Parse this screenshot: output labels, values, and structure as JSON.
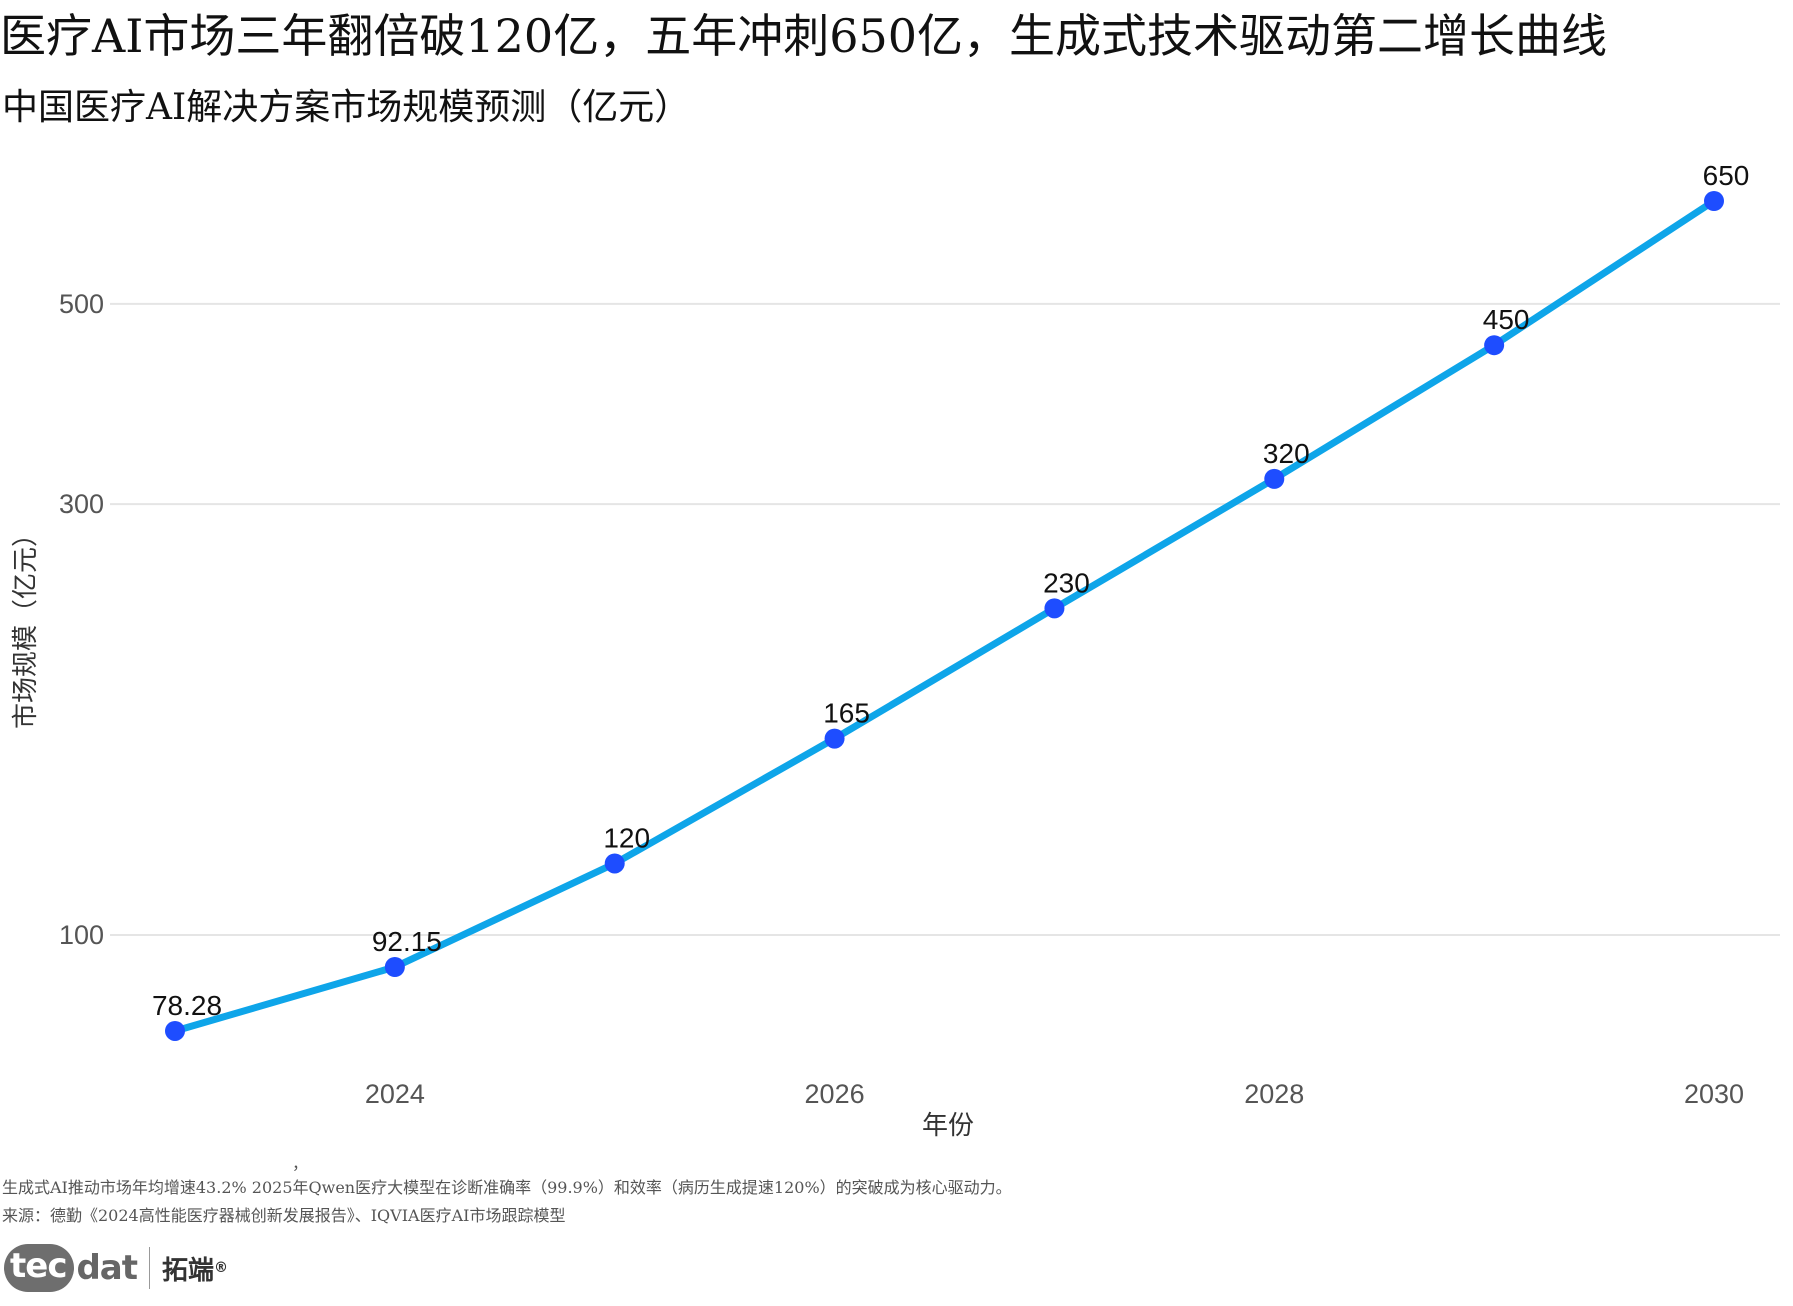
{
  "headline": "医疗AI市场三年翻倍破120亿，五年冲刺650亿，生成式技术驱动第二增长曲线",
  "subtitle": "中国医疗AI解决方案市场规模预测（亿元）",
  "chart_data": {
    "type": "line",
    "x": [
      2023,
      2024,
      2025,
      2026,
      2027,
      2028,
      2029,
      2030
    ],
    "values": [
      78.28,
      92.15,
      120,
      165,
      230,
      320,
      450,
      650
    ],
    "data_labels": [
      "78.28",
      "92.15",
      "120",
      "165",
      "230",
      "320",
      "450",
      "650"
    ],
    "xlabel": "年份",
    "ylabel": "市场规模（亿元）",
    "x_ticks": [
      2024,
      2026,
      2028,
      2030
    ],
    "y_ticks": [
      100,
      300,
      500
    ],
    "y_scale": "log",
    "grid": "horizontal",
    "legend": "none",
    "line_color": "#0ea5e9",
    "marker_color": "#1e4dff",
    "label_color": "#111111",
    "tick_color": "#555555",
    "grid_color": "#e5e5e5"
  },
  "footnote": {
    "stray_mark": "，",
    "note": "生成式AI推动市场年均增速43.2%  2025年Qwen医疗大模型在诊断准确率（99.9%）和效率（病历生成提速120%）的突破成为核心驱动力。",
    "source": "来源：德勤《2024高性能医疗器械创新发展报告》、IQVIA医疗AI市场跟踪模型"
  },
  "brand": {
    "logo_tec": "tec",
    "logo_dat": "dat",
    "name_cn": "拓端",
    "reg_mark": "®"
  }
}
